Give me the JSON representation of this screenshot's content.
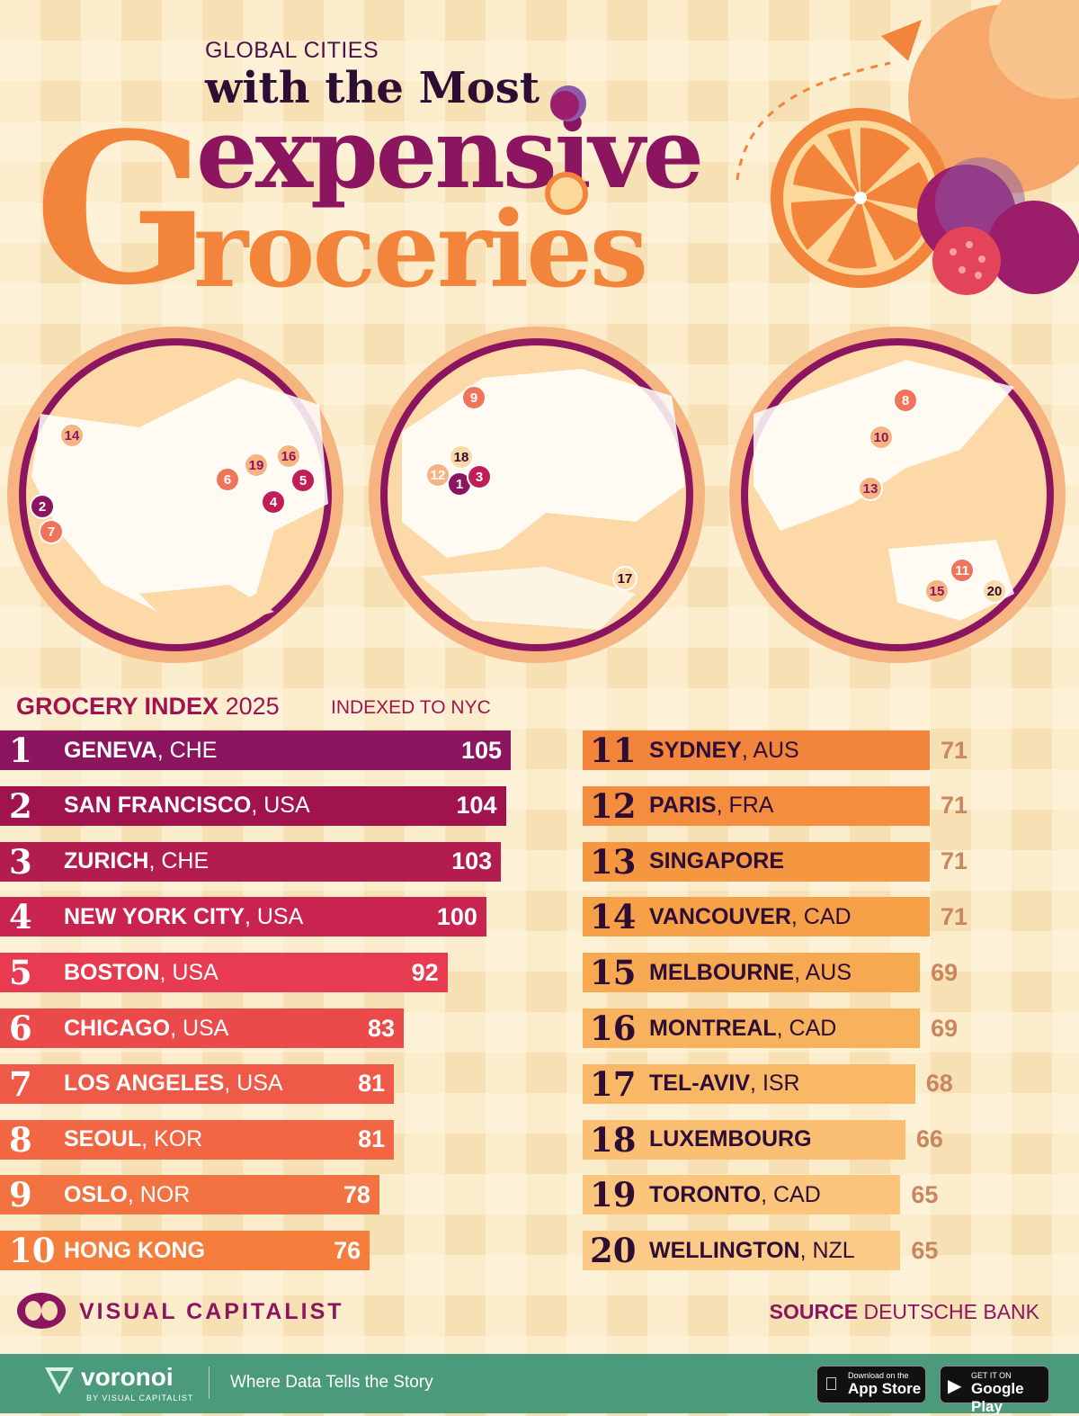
{
  "header": {
    "kicker": "GLOBAL CITIES",
    "line2": "with the Most",
    "word1": "expensive",
    "word2_letter": "G",
    "word2": "roceries"
  },
  "colors": {
    "background": "#f7e0b4",
    "plum": "#8c1560",
    "orange": "#f2853b",
    "dark": "#2e0d35",
    "footer": "#4b9a7c"
  },
  "maps": {
    "americas_pins": [
      "14",
      "2",
      "7",
      "6",
      "19",
      "16",
      "5",
      "4"
    ],
    "europe_pins": [
      "9",
      "18",
      "12",
      "1",
      "3",
      "17"
    ],
    "asia_pins": [
      "8",
      "10",
      "13",
      "11",
      "15",
      "20"
    ]
  },
  "chart_data": {
    "type": "bar",
    "title": "GROCERY INDEX",
    "year": "2025",
    "subtitle": "INDEXED TO NYC",
    "bars": [
      {
        "rank": "1",
        "city": "GENEVA",
        "country": ", CHE",
        "value": 105
      },
      {
        "rank": "2",
        "city": "SAN FRANCISCO",
        "country": ", USA",
        "value": 104
      },
      {
        "rank": "3",
        "city": "ZURICH",
        "country": ", CHE",
        "value": 103
      },
      {
        "rank": "4",
        "city": "NEW YORK CITY",
        "country": ", USA",
        "value": 100
      },
      {
        "rank": "5",
        "city": "BOSTON",
        "country": ", USA",
        "value": 92
      },
      {
        "rank": "6",
        "city": "CHICAGO",
        "country": ", USA",
        "value": 83
      },
      {
        "rank": "7",
        "city": "LOS ANGELES",
        "country": ", USA",
        "value": 81
      },
      {
        "rank": "8",
        "city": "SEOUL",
        "country": ", KOR",
        "value": 81
      },
      {
        "rank": "9",
        "city": "OSLO",
        "country": ", NOR",
        "value": 78
      },
      {
        "rank": "10",
        "city": "HONG KONG",
        "country": "",
        "value": 76
      },
      {
        "rank": "11",
        "city": "SYDNEY",
        "country": ", AUS",
        "value": 71
      },
      {
        "rank": "12",
        "city": "PARIS",
        "country": ", FRA",
        "value": 71
      },
      {
        "rank": "13",
        "city": "SINGAPORE",
        "country": "",
        "value": 71
      },
      {
        "rank": "14",
        "city": "VANCOUVER",
        "country": ", CAD",
        "value": 71
      },
      {
        "rank": "15",
        "city": "MELBOURNE",
        "country": ", AUS",
        "value": 69
      },
      {
        "rank": "16",
        "city": "MONTREAL",
        "country": ", CAD",
        "value": 69
      },
      {
        "rank": "17",
        "city": "TEL-AVIV",
        "country": ", ISR",
        "value": 68
      },
      {
        "rank": "18",
        "city": "LUXEMBOURG",
        "country": "",
        "value": 66
      },
      {
        "rank": "19",
        "city": "TORONTO",
        "country": ", CAD",
        "value": 65
      },
      {
        "rank": "20",
        "city": "WELLINGTON",
        "country": ", NZL",
        "value": 65
      }
    ]
  },
  "branding": {
    "name": "VISUAL CAPITALIST",
    "source_label": "SOURCE",
    "source_value": " DEUTSCHE BANK"
  },
  "footer": {
    "brand": "voronoi",
    "brand_sub": "BY VISUAL CAPITALIST",
    "tagline": "Where Data Tells the Story",
    "app_store_small": "Download on the",
    "app_store_big": "App Store",
    "play_small": "GET IT ON",
    "play_big": "Google Play"
  }
}
